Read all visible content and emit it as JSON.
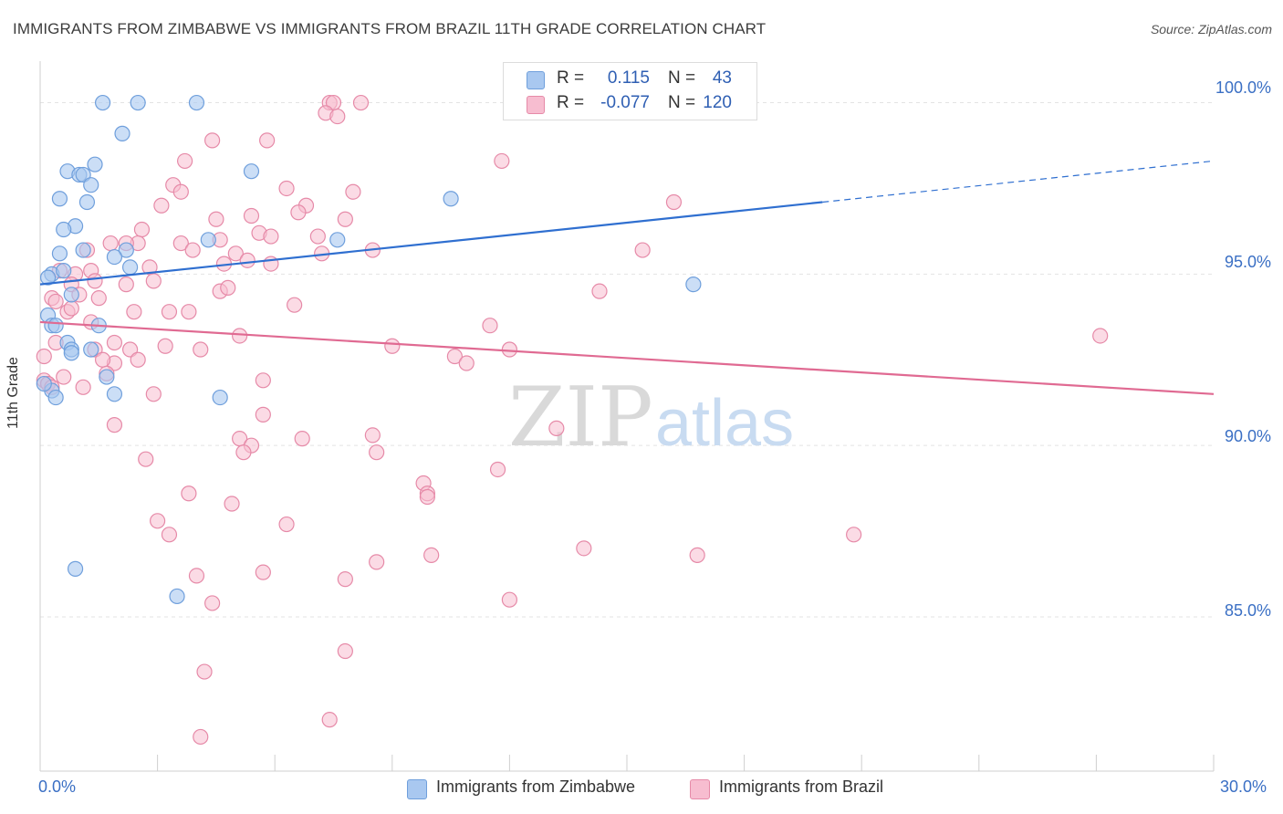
{
  "header": {
    "title": "IMMIGRANTS FROM ZIMBABWE VS IMMIGRANTS FROM BRAZIL 11TH GRADE CORRELATION CHART",
    "source": "Source: ZipAtlas.com"
  },
  "legend": {
    "r_label": "R =",
    "n_label": "N =",
    "rows": [
      {
        "r": "0.115",
        "n": "43",
        "fill": "#a9c8f0",
        "stroke": "#6f9fdc"
      },
      {
        "r": "-0.077",
        "n": "120",
        "fill": "#f7bdd0",
        "stroke": "#e68aa8"
      }
    ]
  },
  "watermark": {
    "zip": "ZIP",
    "atlas": "atlas"
  },
  "chart_data": {
    "type": "scatter",
    "title": "IMMIGRANTS FROM ZIMBABWE VS IMMIGRANTS FROM BRAZIL 11TH GRADE CORRELATION CHART",
    "xlabel": "",
    "ylabel": "11th Grade",
    "xlim": [
      0,
      30
    ],
    "ylim": [
      80.5,
      101
    ],
    "x_tick_labels": [
      "0.0%",
      "30.0%"
    ],
    "y_tick_labels": [
      "100.0%",
      "95.0%",
      "90.0%",
      "85.0%"
    ],
    "y_ticks": [
      100,
      95,
      90,
      85
    ],
    "grid": true,
    "legend_position": "top-center",
    "series": [
      {
        "name": "Immigrants from Zimbabwe",
        "color": "#6f9fdc",
        "fill": "#a9c8f0",
        "trend": {
          "x": [
            0,
            20
          ],
          "y": [
            94.7,
            97.1
          ],
          "dashed_to": [
            30,
            98.3
          ]
        },
        "points": [
          [
            1.6,
            100
          ],
          [
            2.5,
            100
          ],
          [
            4.0,
            100
          ],
          [
            2.1,
            99.1
          ],
          [
            1.4,
            98.2
          ],
          [
            0.7,
            98.0
          ],
          [
            1.0,
            97.9
          ],
          [
            1.1,
            97.9
          ],
          [
            5.4,
            98.0
          ],
          [
            1.3,
            97.6
          ],
          [
            0.5,
            97.2
          ],
          [
            1.2,
            97.1
          ],
          [
            10.5,
            97.2
          ],
          [
            0.9,
            96.4
          ],
          [
            0.6,
            96.3
          ],
          [
            4.3,
            96.0
          ],
          [
            7.6,
            96.0
          ],
          [
            0.5,
            95.6
          ],
          [
            1.1,
            95.7
          ],
          [
            2.2,
            95.7
          ],
          [
            1.9,
            95.5
          ],
          [
            2.3,
            95.2
          ],
          [
            0.3,
            95.0
          ],
          [
            0.2,
            94.9
          ],
          [
            0.6,
            95.1
          ],
          [
            0.8,
            94.4
          ],
          [
            16.7,
            94.7
          ],
          [
            0.2,
            93.8
          ],
          [
            0.3,
            93.5
          ],
          [
            0.4,
            93.5
          ],
          [
            1.5,
            93.5
          ],
          [
            0.7,
            93.0
          ],
          [
            0.8,
            92.8
          ],
          [
            0.8,
            92.7
          ],
          [
            1.3,
            92.8
          ],
          [
            1.7,
            92.0
          ],
          [
            0.3,
            91.6
          ],
          [
            0.4,
            91.4
          ],
          [
            1.9,
            91.5
          ],
          [
            4.6,
            91.4
          ],
          [
            0.9,
            86.4
          ],
          [
            3.5,
            85.6
          ],
          [
            0.1,
            91.8
          ]
        ]
      },
      {
        "name": "Immigrants from Brazil",
        "color": "#e68aa8",
        "fill": "#f7bdd0",
        "trend": {
          "x": [
            0,
            30
          ],
          "y": [
            93.6,
            91.5
          ]
        },
        "points": [
          [
            7.4,
            100
          ],
          [
            7.5,
            100
          ],
          [
            8.2,
            100
          ],
          [
            13.0,
            100
          ],
          [
            7.3,
            99.7
          ],
          [
            7.6,
            99.6
          ],
          [
            4.4,
            98.9
          ],
          [
            5.8,
            98.9
          ],
          [
            3.7,
            98.3
          ],
          [
            11.8,
            98.3
          ],
          [
            3.4,
            97.6
          ],
          [
            6.3,
            97.5
          ],
          [
            3.6,
            97.4
          ],
          [
            8.0,
            97.4
          ],
          [
            3.1,
            97.0
          ],
          [
            6.8,
            97.0
          ],
          [
            6.6,
            96.8
          ],
          [
            16.2,
            97.1
          ],
          [
            4.5,
            96.6
          ],
          [
            5.4,
            96.7
          ],
          [
            7.8,
            96.6
          ],
          [
            2.6,
            96.3
          ],
          [
            5.6,
            96.2
          ],
          [
            4.6,
            96.0
          ],
          [
            2.5,
            95.9
          ],
          [
            1.8,
            95.9
          ],
          [
            5.9,
            96.1
          ],
          [
            2.2,
            95.9
          ],
          [
            3.6,
            95.9
          ],
          [
            7.1,
            96.1
          ],
          [
            3.9,
            95.7
          ],
          [
            5.0,
            95.6
          ],
          [
            15.4,
            95.7
          ],
          [
            8.5,
            95.7
          ],
          [
            1.2,
            95.7
          ],
          [
            2.8,
            95.2
          ],
          [
            4.7,
            95.3
          ],
          [
            5.3,
            95.4
          ],
          [
            5.9,
            95.3
          ],
          [
            7.2,
            95.6
          ],
          [
            1.3,
            95.1
          ],
          [
            0.5,
            95.1
          ],
          [
            0.9,
            95.0
          ],
          [
            1.4,
            94.8
          ],
          [
            2.2,
            94.7
          ],
          [
            2.9,
            94.8
          ],
          [
            0.8,
            94.7
          ],
          [
            4.6,
            94.5
          ],
          [
            4.8,
            94.6
          ],
          [
            14.3,
            94.5
          ],
          [
            0.3,
            94.3
          ],
          [
            0.4,
            94.2
          ],
          [
            1.5,
            94.3
          ],
          [
            1.0,
            94.4
          ],
          [
            0.7,
            93.9
          ],
          [
            0.8,
            94.0
          ],
          [
            2.4,
            93.9
          ],
          [
            3.3,
            93.9
          ],
          [
            3.8,
            93.9
          ],
          [
            6.5,
            94.1
          ],
          [
            11.5,
            93.5
          ],
          [
            1.3,
            93.6
          ],
          [
            5.1,
            93.2
          ],
          [
            1.9,
            93.0
          ],
          [
            3.2,
            92.9
          ],
          [
            9.0,
            92.9
          ],
          [
            12.0,
            92.8
          ],
          [
            27.1,
            93.2
          ],
          [
            1.4,
            92.8
          ],
          [
            2.3,
            92.8
          ],
          [
            4.1,
            92.8
          ],
          [
            10.6,
            92.6
          ],
          [
            2.5,
            92.5
          ],
          [
            1.9,
            92.4
          ],
          [
            1.6,
            92.5
          ],
          [
            10.9,
            92.4
          ],
          [
            1.7,
            92.1
          ],
          [
            0.1,
            91.9
          ],
          [
            0.2,
            91.8
          ],
          [
            5.7,
            91.9
          ],
          [
            2.9,
            91.5
          ],
          [
            5.7,
            90.9
          ],
          [
            13.2,
            90.5
          ],
          [
            1.9,
            90.6
          ],
          [
            8.5,
            90.3
          ],
          [
            5.1,
            90.2
          ],
          [
            6.7,
            90.2
          ],
          [
            5.4,
            90.0
          ],
          [
            5.2,
            89.8
          ],
          [
            8.6,
            89.8
          ],
          [
            2.7,
            89.6
          ],
          [
            11.7,
            89.3
          ],
          [
            9.8,
            88.9
          ],
          [
            9.9,
            88.6
          ],
          [
            9.9,
            88.5
          ],
          [
            3.8,
            88.6
          ],
          [
            4.9,
            88.3
          ],
          [
            3.0,
            87.8
          ],
          [
            6.3,
            87.7
          ],
          [
            3.3,
            87.4
          ],
          [
            20.8,
            87.4
          ],
          [
            13.9,
            87.0
          ],
          [
            16.8,
            86.8
          ],
          [
            10.0,
            86.8
          ],
          [
            8.6,
            86.6
          ],
          [
            5.7,
            86.3
          ],
          [
            4.0,
            86.2
          ],
          [
            7.8,
            86.1
          ],
          [
            12.0,
            85.5
          ],
          [
            4.4,
            85.4
          ],
          [
            7.8,
            84.0
          ],
          [
            4.2,
            83.4
          ],
          [
            7.4,
            82.0
          ],
          [
            4.1,
            81.5
          ],
          [
            0.1,
            92.6
          ],
          [
            0.2,
            91.8
          ],
          [
            0.3,
            91.7
          ],
          [
            1.1,
            91.7
          ],
          [
            0.6,
            92.0
          ],
          [
            0.4,
            93.0
          ]
        ]
      }
    ]
  },
  "bottom_legend": [
    {
      "label": "Immigrants from Zimbabwe",
      "fill": "#a9c8f0",
      "stroke": "#6f9fdc"
    },
    {
      "label": "Immigrants from Brazil",
      "fill": "#f7bdd0",
      "stroke": "#e68aa8"
    }
  ]
}
